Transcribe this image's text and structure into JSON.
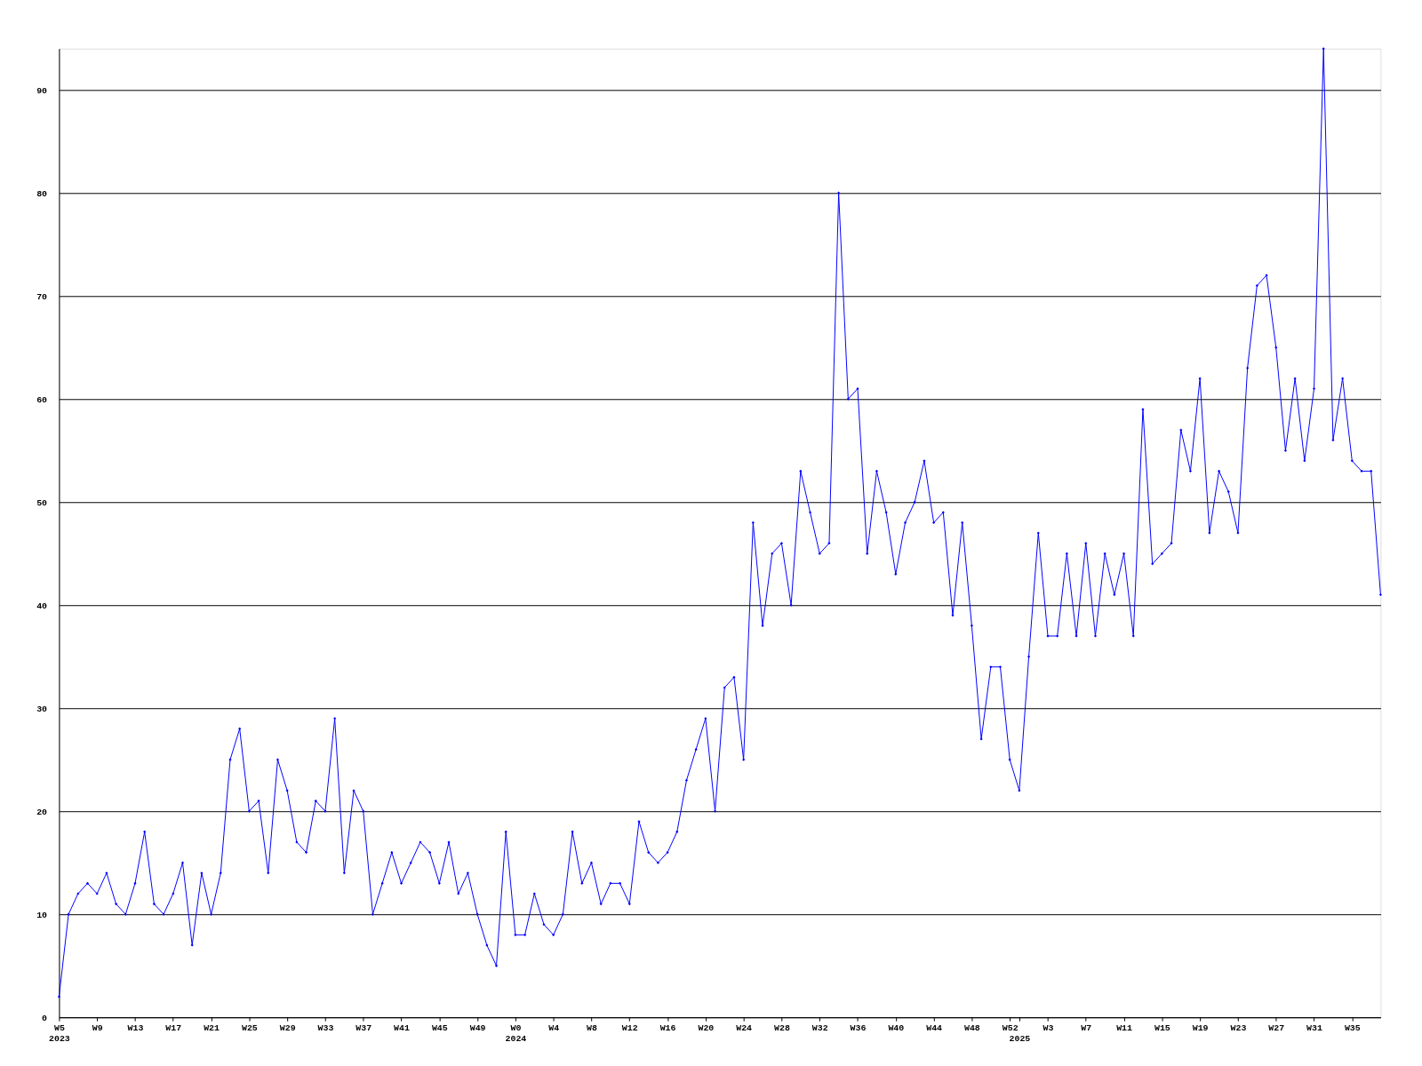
{
  "chart_data": {
    "type": "line",
    "categories": [
      "W5\n2023",
      null,
      null,
      null,
      "W9",
      null,
      null,
      null,
      "W13",
      null,
      null,
      null,
      "W17",
      null,
      null,
      null,
      "W21",
      null,
      null,
      null,
      "W25",
      null,
      null,
      null,
      "W29",
      null,
      null,
      null,
      "W33",
      null,
      null,
      null,
      "W37",
      null,
      null,
      null,
      "W41",
      null,
      null,
      null,
      "W45",
      null,
      null,
      null,
      "W49",
      null,
      null,
      null,
      "W0\n2024",
      null,
      null,
      null,
      "W4",
      null,
      null,
      null,
      "W8",
      null,
      null,
      null,
      "W12",
      null,
      null,
      null,
      "W16",
      null,
      null,
      null,
      "W20",
      null,
      null,
      null,
      "W24",
      null,
      null,
      null,
      "W28",
      null,
      null,
      null,
      "W32",
      null,
      null,
      null,
      "W36",
      null,
      null,
      null,
      "W40",
      null,
      null,
      null,
      "W44",
      null,
      null,
      null,
      "W48",
      null,
      null,
      null,
      "W52",
      "\n2025",
      null,
      null,
      "W3",
      null,
      null,
      null,
      "W7",
      null,
      null,
      null,
      "W11",
      null,
      null,
      null,
      "W15",
      null,
      null,
      null,
      "W19",
      null,
      null,
      null,
      "W23",
      null,
      null,
      null,
      "W27",
      null,
      null,
      null,
      "W31",
      null,
      null,
      null,
      "W35",
      null,
      null,
      null
    ],
    "series": [
      {
        "color": "#0000ff",
        "values": [
          2,
          10,
          12,
          13,
          12,
          14,
          11,
          10,
          13,
          18,
          11,
          10,
          12,
          15,
          7,
          14,
          10,
          14,
          25,
          28,
          20,
          21,
          14,
          25,
          22,
          17,
          16,
          21,
          20,
          29,
          14,
          22,
          20,
          10,
          13,
          16,
          13,
          15,
          17,
          16,
          13,
          17,
          12,
          14,
          10,
          7,
          5,
          18,
          8,
          8,
          12,
          9,
          8,
          10,
          18,
          13,
          15,
          11,
          13,
          13,
          11,
          19,
          16,
          15,
          16,
          18,
          23,
          26,
          29,
          20,
          32,
          33,
          25,
          48,
          38,
          45,
          46,
          40,
          53,
          49,
          45,
          46,
          80,
          60,
          61,
          45,
          53,
          49,
          43,
          48,
          50,
          54,
          48,
          49,
          39,
          48,
          38,
          27,
          34,
          34,
          25,
          22,
          35,
          47,
          37,
          37,
          45,
          37,
          46,
          37,
          45,
          41,
          45,
          37,
          59,
          44,
          45,
          46,
          57,
          53,
          62,
          47,
          53,
          51,
          47,
          63,
          71,
          72,
          65,
          55,
          62,
          54,
          61,
          94,
          56,
          62,
          54,
          53,
          53,
          41
        ]
      }
    ],
    "ylim": [
      0,
      94
    ],
    "yticks": [
      0,
      10,
      20,
      30,
      40,
      50,
      60,
      70,
      80,
      90
    ],
    "grid": "y",
    "marker": "diamond",
    "line_style": "solid"
  }
}
